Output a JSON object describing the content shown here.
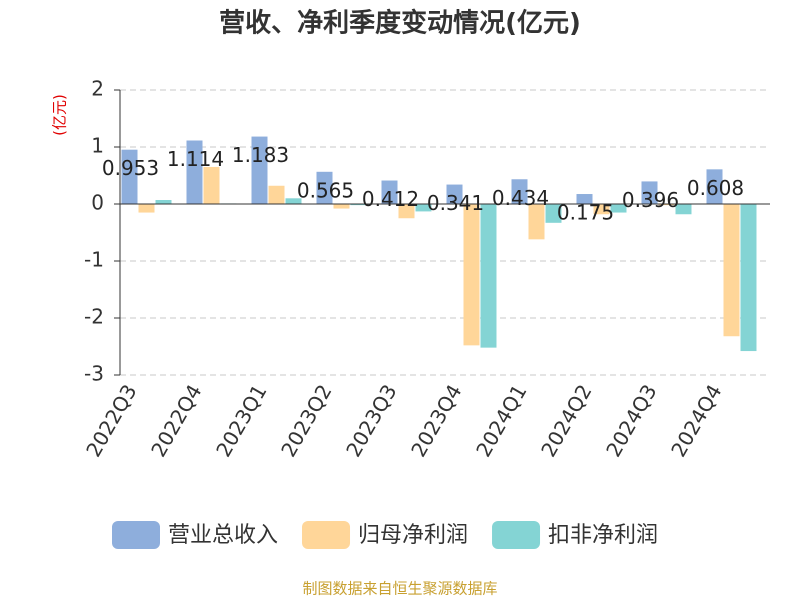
{
  "chart_data": {
    "type": "bar",
    "title": "营收、净利季度变动情况(亿元)",
    "y_label": "(亿元)",
    "footer": "制图数据来自恒生聚源数据库",
    "categories": [
      "2022Q3",
      "2022Q4",
      "2023Q1",
      "2023Q2",
      "2023Q3",
      "2023Q4",
      "2024Q1",
      "2024Q2",
      "2024Q3",
      "2024Q4"
    ],
    "series": [
      {
        "name": "营业总收入",
        "color": "#8eaedc",
        "values": [
          0.953,
          1.114,
          1.183,
          0.565,
          0.412,
          0.341,
          0.434,
          0.175,
          0.396,
          0.608
        ]
      },
      {
        "name": "归母净利润",
        "color": "#ffd699",
        "values": [
          -0.15,
          0.65,
          0.32,
          -0.08,
          -0.25,
          -2.48,
          -0.62,
          -0.18,
          -0.02,
          -2.32
        ]
      },
      {
        "name": "扣非净利润",
        "color": "#84d4d4",
        "values": [
          0.07,
          0.01,
          0.1,
          -0.02,
          -0.13,
          -2.52,
          -0.33,
          -0.15,
          -0.18,
          -2.58
        ]
      }
    ],
    "ylim": [
      -3,
      2
    ],
    "yticks": [
      -3,
      -2,
      -1,
      0,
      1,
      2
    ],
    "grid": true
  }
}
